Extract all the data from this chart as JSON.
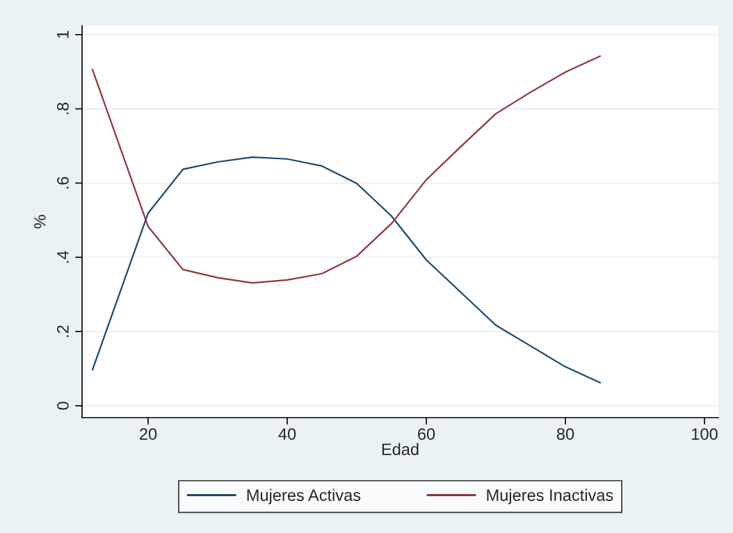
{
  "chart_data": {
    "type": "line",
    "xlabel": "Edad",
    "ylabel": "%",
    "x": [
      12,
      20,
      25,
      30,
      35,
      40,
      45,
      50,
      55,
      60,
      65,
      70,
      75,
      80,
      85
    ],
    "series": [
      {
        "name": "Mujeres Activas",
        "color": "#1a476f",
        "values": [
          0.097,
          0.519,
          0.637,
          0.657,
          0.67,
          0.665,
          0.646,
          0.599,
          0.511,
          0.393,
          0.305,
          0.217,
          0.161,
          0.105,
          0.062
        ]
      },
      {
        "name": "Mujeres Inactivas",
        "color": "#90353b",
        "values": [
          0.906,
          0.483,
          0.367,
          0.345,
          0.331,
          0.339,
          0.356,
          0.403,
          0.491,
          0.609,
          0.699,
          0.787,
          0.845,
          0.899,
          0.942
        ]
      }
    ],
    "xlim": [
      10.5,
      102
    ],
    "xticks": [
      20,
      40,
      60,
      80,
      100
    ],
    "ylim": [
      -0.032,
      1.024
    ],
    "yticks": [
      {
        "value": 0,
        "label": "0"
      },
      {
        "value": 0.2,
        "label": ".2"
      },
      {
        "value": 0.4,
        "label": ".4"
      },
      {
        "value": 0.6,
        "label": ".6"
      },
      {
        "value": 0.8,
        "label": ".8"
      },
      {
        "value": 1,
        "label": "1"
      }
    ],
    "grid": "y",
    "legend": "bottom",
    "marker": "none",
    "line_style": "solid"
  }
}
